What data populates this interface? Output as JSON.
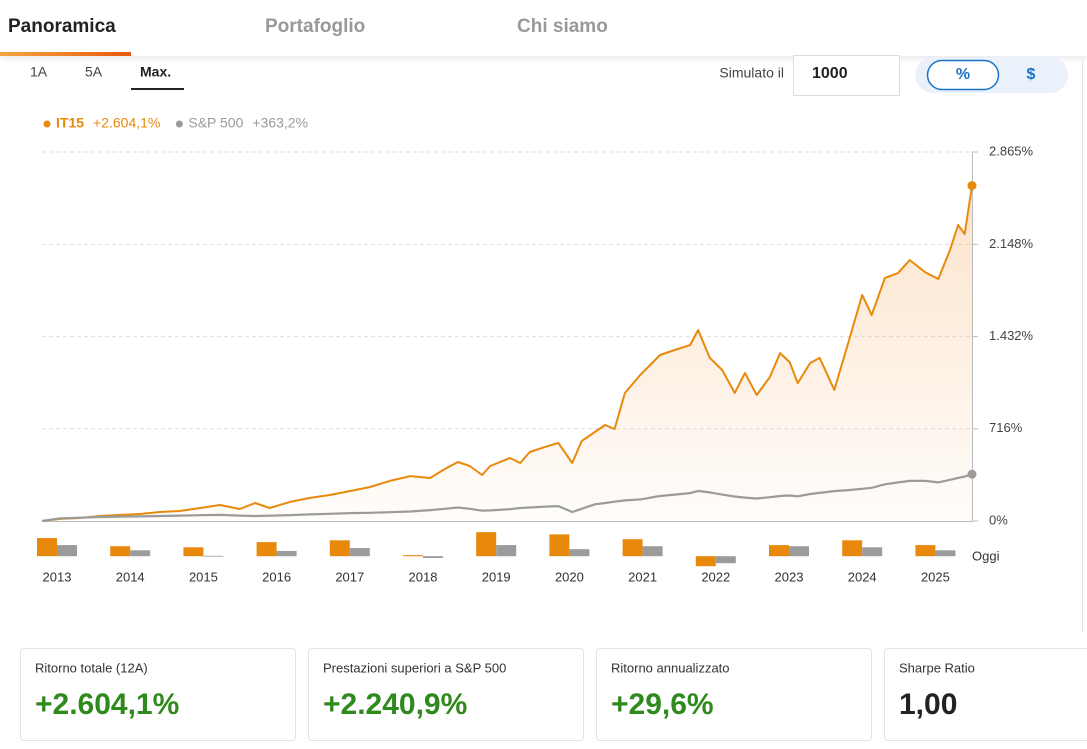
{
  "tabs": [
    "Panoramica",
    "Portafoglio",
    "Chi siamo"
  ],
  "ranges": [
    "1A",
    "5A",
    "Max."
  ],
  "simulate": {
    "label": "Simulato il",
    "value": "1000"
  },
  "toggle": [
    "%",
    "$"
  ],
  "chart_data": [
    {
      "type": "line",
      "x": [
        2012.8,
        2013.05,
        2013.32,
        2013.59,
        2013.87,
        2014.14,
        2014.41,
        2014.68,
        2014.96,
        2015.23,
        2015.5,
        2015.71,
        2015.91,
        2016.19,
        2016.46,
        2016.73,
        2017.01,
        2017.28,
        2017.55,
        2017.83,
        2018.1,
        2018.3,
        2018.48,
        2018.64,
        2018.81,
        2018.92,
        2019.19,
        2019.33,
        2019.46,
        2019.67,
        2019.85,
        2020.04,
        2020.17,
        2020.35,
        2020.49,
        2020.62,
        2020.76,
        2020.97,
        2021.24,
        2021.44,
        2021.65,
        2021.76,
        2021.92,
        2022.09,
        2022.26,
        2022.4,
        2022.56,
        2022.74,
        2022.88,
        2023.01,
        2023.12,
        2023.29,
        2023.42,
        2023.62,
        2023.81,
        2024.0,
        2024.13,
        2024.31,
        2024.49,
        2024.65,
        2024.86,
        2025.04,
        2025.2,
        2025.31,
        2025.4,
        2025.5
      ],
      "xlim": [
        2012.8,
        2025.5
      ],
      "series": [
        {
          "name": "IT15",
          "total": "+2.604,1%",
          "color": "#e8890c",
          "values": [
            0,
            16,
            23,
            39,
            47,
            54,
            70,
            78,
            101,
            124,
            93,
            140,
            101,
            148,
            179,
            202,
            233,
            264,
            311,
            349,
            334,
            404,
            458,
            427,
            357,
            427,
            489,
            450,
            536,
            575,
            606,
            450,
            621,
            691,
            745,
            714,
            994,
            1134,
            1289,
            1328,
            1366,
            1483,
            1266,
            1172,
            994,
            1149,
            978,
            1118,
            1304,
            1234,
            1071,
            1227,
            1266,
            1017,
            1382,
            1755,
            1599,
            1887,
            1925,
            2026,
            1932,
            1879,
            2104,
            2298,
            2228,
            2604.1
          ]
        },
        {
          "name": "S&P 500",
          "total": "+363,2%",
          "color": "#9b9b9b",
          "values": [
            0,
            20,
            26,
            31,
            34,
            36,
            39,
            42,
            45,
            47,
            42,
            39,
            41,
            46,
            51,
            56,
            61,
            64,
            68,
            74,
            85,
            95,
            105,
            95,
            80,
            82,
            92,
            101,
            105,
            112,
            116,
            70,
            95,
            130,
            140,
            150,
            160,
            168,
            194,
            205,
            217,
            233,
            222,
            205,
            190,
            182,
            175,
            185,
            194,
            198,
            192,
            210,
            218,
            232,
            240,
            250,
            258,
            285,
            300,
            311,
            311,
            300,
            320,
            335,
            345,
            363.2
          ]
        }
      ],
      "ylim": [
        0,
        2865
      ],
      "yticks": [
        {
          "value": 0,
          "label": "0%"
        },
        {
          "value": 716,
          "label": "716%"
        },
        {
          "value": 1432,
          "label": "1.432%"
        },
        {
          "value": 2148,
          "label": "2.148%"
        },
        {
          "value": 2865,
          "label": "2.865%"
        }
      ],
      "grid": true
    },
    {
      "type": "bar",
      "categories": [
        "2013",
        "2014",
        "2015",
        "2016",
        "2017",
        "2018",
        "2019",
        "2020",
        "2021",
        "2022",
        "2023",
        "2024",
        "2025"
      ],
      "end_label": "Oggi",
      "ylim": [
        -40,
        70
      ],
      "series": [
        {
          "name": "IT15",
          "color": "#e8890c",
          "values": [
            49,
            27,
            24,
            38,
            43,
            3,
            65,
            59,
            46,
            -27,
            30,
            43,
            30
          ]
        },
        {
          "name": "S&P 500",
          "color": "#9b9b9b",
          "values": [
            30,
            16,
            1,
            14,
            22,
            -5,
            30,
            19,
            27,
            -19,
            27,
            24,
            16
          ]
        }
      ]
    }
  ],
  "stats": [
    {
      "label": "Ritorno totale (12A)",
      "value": "+2.604,1%"
    },
    {
      "label": "Prestazioni superiori a S&P 500",
      "value": "+2.240,9%"
    },
    {
      "label": "Ritorno annualizzato",
      "value": "+29,6%"
    },
    {
      "label": "Sharpe Ratio",
      "value": "1,00"
    }
  ]
}
